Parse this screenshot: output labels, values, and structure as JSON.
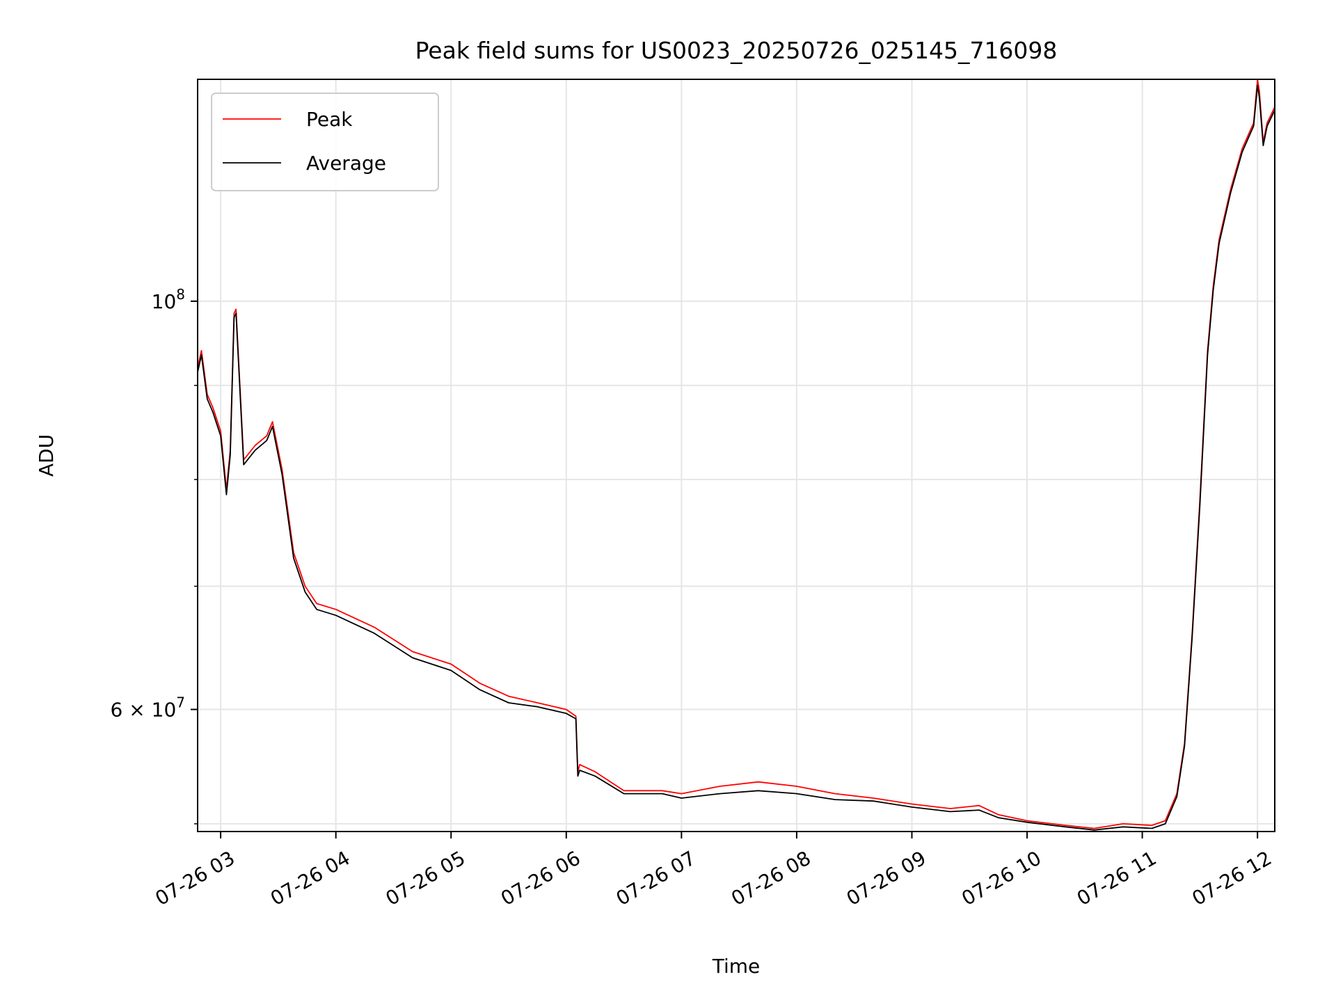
{
  "chart_data": {
    "type": "line",
    "title": "Peak field sums for US0023_20250726_025145_716098",
    "xlabel": "Time",
    "ylabel": "ADU",
    "yscale": "log",
    "grid": true,
    "legend_position": "upper left",
    "xlim": [
      "2025-07-26T02:48",
      "2025-07-26T12:09"
    ],
    "ylim": [
      51500000,
      132000000
    ],
    "x_ticks": [
      {
        "value": "2025-07-26T03:00",
        "label": "07-26 03"
      },
      {
        "value": "2025-07-26T04:00",
        "label": "07-26 04"
      },
      {
        "value": "2025-07-26T05:00",
        "label": "07-26 05"
      },
      {
        "value": "2025-07-26T06:00",
        "label": "07-26 06"
      },
      {
        "value": "2025-07-26T07:00",
        "label": "07-26 07"
      },
      {
        "value": "2025-07-26T08:00",
        "label": "07-26 08"
      },
      {
        "value": "2025-07-26T09:00",
        "label": "07-26 09"
      },
      {
        "value": "2025-07-26T10:00",
        "label": "07-26 10"
      },
      {
        "value": "2025-07-26T11:00",
        "label": "07-26 11"
      },
      {
        "value": "2025-07-26T12:00",
        "label": "07-26 12"
      }
    ],
    "y_major_ticks": [
      {
        "value": 100000000,
        "mantissa": "",
        "base": "10",
        "exp": "8"
      },
      {
        "value": 60000000,
        "mantissa": "6 × ",
        "base": "10",
        "exp": "7"
      }
    ],
    "y_minor_ticks": [
      52000000,
      70000000,
      80000000,
      90000000
    ],
    "series": [
      {
        "name": "Peak",
        "color": "#ff0000",
        "x": [
          "2025-07-26T02:48",
          "2025-07-26T02:50",
          "2025-07-26T02:53",
          "2025-07-26T02:56",
          "2025-07-26T03:00",
          "2025-07-26T03:03",
          "2025-07-26T03:05",
          "2025-07-26T03:07",
          "2025-07-26T03:08",
          "2025-07-26T03:12",
          "2025-07-26T03:18",
          "2025-07-26T03:24",
          "2025-07-26T03:27",
          "2025-07-26T03:32",
          "2025-07-26T03:38",
          "2025-07-26T03:44",
          "2025-07-26T03:50",
          "2025-07-26T04:00",
          "2025-07-26T04:20",
          "2025-07-26T04:40",
          "2025-07-26T05:00",
          "2025-07-26T05:15",
          "2025-07-26T05:30",
          "2025-07-26T05:45",
          "2025-07-26T06:00",
          "2025-07-26T06:05",
          "2025-07-26T06:06",
          "2025-07-26T06:07",
          "2025-07-26T06:15",
          "2025-07-26T06:30",
          "2025-07-26T06:50",
          "2025-07-26T07:00",
          "2025-07-26T07:20",
          "2025-07-26T07:40",
          "2025-07-26T08:00",
          "2025-07-26T08:20",
          "2025-07-26T08:40",
          "2025-07-26T09:00",
          "2025-07-26T09:20",
          "2025-07-26T09:35",
          "2025-07-26T09:45",
          "2025-07-26T10:00",
          "2025-07-26T10:20",
          "2025-07-26T10:35",
          "2025-07-26T10:50",
          "2025-07-26T11:05",
          "2025-07-26T11:12",
          "2025-07-26T11:18",
          "2025-07-26T11:22",
          "2025-07-26T11:26",
          "2025-07-26T11:30",
          "2025-07-26T11:34",
          "2025-07-26T11:37",
          "2025-07-26T11:40",
          "2025-07-26T11:46",
          "2025-07-26T11:52",
          "2025-07-26T11:58",
          "2025-07-26T12:00",
          "2025-07-26T12:01",
          "2025-07-26T12:03",
          "2025-07-26T12:05",
          "2025-07-26T12:09"
        ],
        "y": [
          92000000,
          94000000,
          89000000,
          87500000,
          85000000,
          79000000,
          83000000,
          98500000,
          99000000,
          82000000,
          83500000,
          84500000,
          86000000,
          81000000,
          73000000,
          70000000,
          68500000,
          68000000,
          66500000,
          64500000,
          63500000,
          62000000,
          61000000,
          60500000,
          60000000,
          59500000,
          55500000,
          56000000,
          55500000,
          54200000,
          54200000,
          54000000,
          54500000,
          54800000,
          54500000,
          54000000,
          53700000,
          53300000,
          53000000,
          53200000,
          52600000,
          52200000,
          51900000,
          51700000,
          52000000,
          51900000,
          52200000,
          54000000,
          57500000,
          66000000,
          78000000,
          94000000,
          102000000,
          108000000,
          115000000,
          121000000,
          125000000,
          132000000,
          130000000,
          122000000,
          125000000,
          127500000
        ]
      },
      {
        "name": "Average",
        "color": "#000000",
        "x": [
          "2025-07-26T02:48",
          "2025-07-26T02:50",
          "2025-07-26T02:53",
          "2025-07-26T02:56",
          "2025-07-26T03:00",
          "2025-07-26T03:03",
          "2025-07-26T03:05",
          "2025-07-26T03:07",
          "2025-07-26T03:08",
          "2025-07-26T03:12",
          "2025-07-26T03:18",
          "2025-07-26T03:24",
          "2025-07-26T03:27",
          "2025-07-26T03:32",
          "2025-07-26T03:38",
          "2025-07-26T03:44",
          "2025-07-26T03:50",
          "2025-07-26T04:00",
          "2025-07-26T04:20",
          "2025-07-26T04:40",
          "2025-07-26T05:00",
          "2025-07-26T05:15",
          "2025-07-26T05:30",
          "2025-07-26T05:45",
          "2025-07-26T06:00",
          "2025-07-26T06:05",
          "2025-07-26T06:06",
          "2025-07-26T06:07",
          "2025-07-26T06:15",
          "2025-07-26T06:30",
          "2025-07-26T06:50",
          "2025-07-26T07:00",
          "2025-07-26T07:20",
          "2025-07-26T07:40",
          "2025-07-26T08:00",
          "2025-07-26T08:20",
          "2025-07-26T08:40",
          "2025-07-26T09:00",
          "2025-07-26T09:20",
          "2025-07-26T09:35",
          "2025-07-26T09:45",
          "2025-07-26T10:00",
          "2025-07-26T10:20",
          "2025-07-26T10:35",
          "2025-07-26T10:50",
          "2025-07-26T11:05",
          "2025-07-26T11:12",
          "2025-07-26T11:18",
          "2025-07-26T11:22",
          "2025-07-26T11:26",
          "2025-07-26T11:30",
          "2025-07-26T11:34",
          "2025-07-26T11:37",
          "2025-07-26T11:40",
          "2025-07-26T11:46",
          "2025-07-26T11:52",
          "2025-07-26T11:58",
          "2025-07-26T12:00",
          "2025-07-26T12:01",
          "2025-07-26T12:03",
          "2025-07-26T12:05",
          "2025-07-26T12:09"
        ],
        "y": [
          91500000,
          93500000,
          88500000,
          87000000,
          84500000,
          78500000,
          82500000,
          98000000,
          98500000,
          81500000,
          83000000,
          84000000,
          85500000,
          80500000,
          72500000,
          69500000,
          68000000,
          67500000,
          66000000,
          64000000,
          63000000,
          61500000,
          60500000,
          60200000,
          59700000,
          59300000,
          55200000,
          55600000,
          55200000,
          54000000,
          54000000,
          53700000,
          54000000,
          54200000,
          54000000,
          53600000,
          53500000,
          53100000,
          52800000,
          52900000,
          52400000,
          52100000,
          51800000,
          51600000,
          51800000,
          51700000,
          52000000,
          53800000,
          57300000,
          65700000,
          77500000,
          93500000,
          101500000,
          107500000,
          114500000,
          120500000,
          124500000,
          131000000,
          129000000,
          121500000,
          124500000,
          127000000
        ]
      }
    ]
  }
}
